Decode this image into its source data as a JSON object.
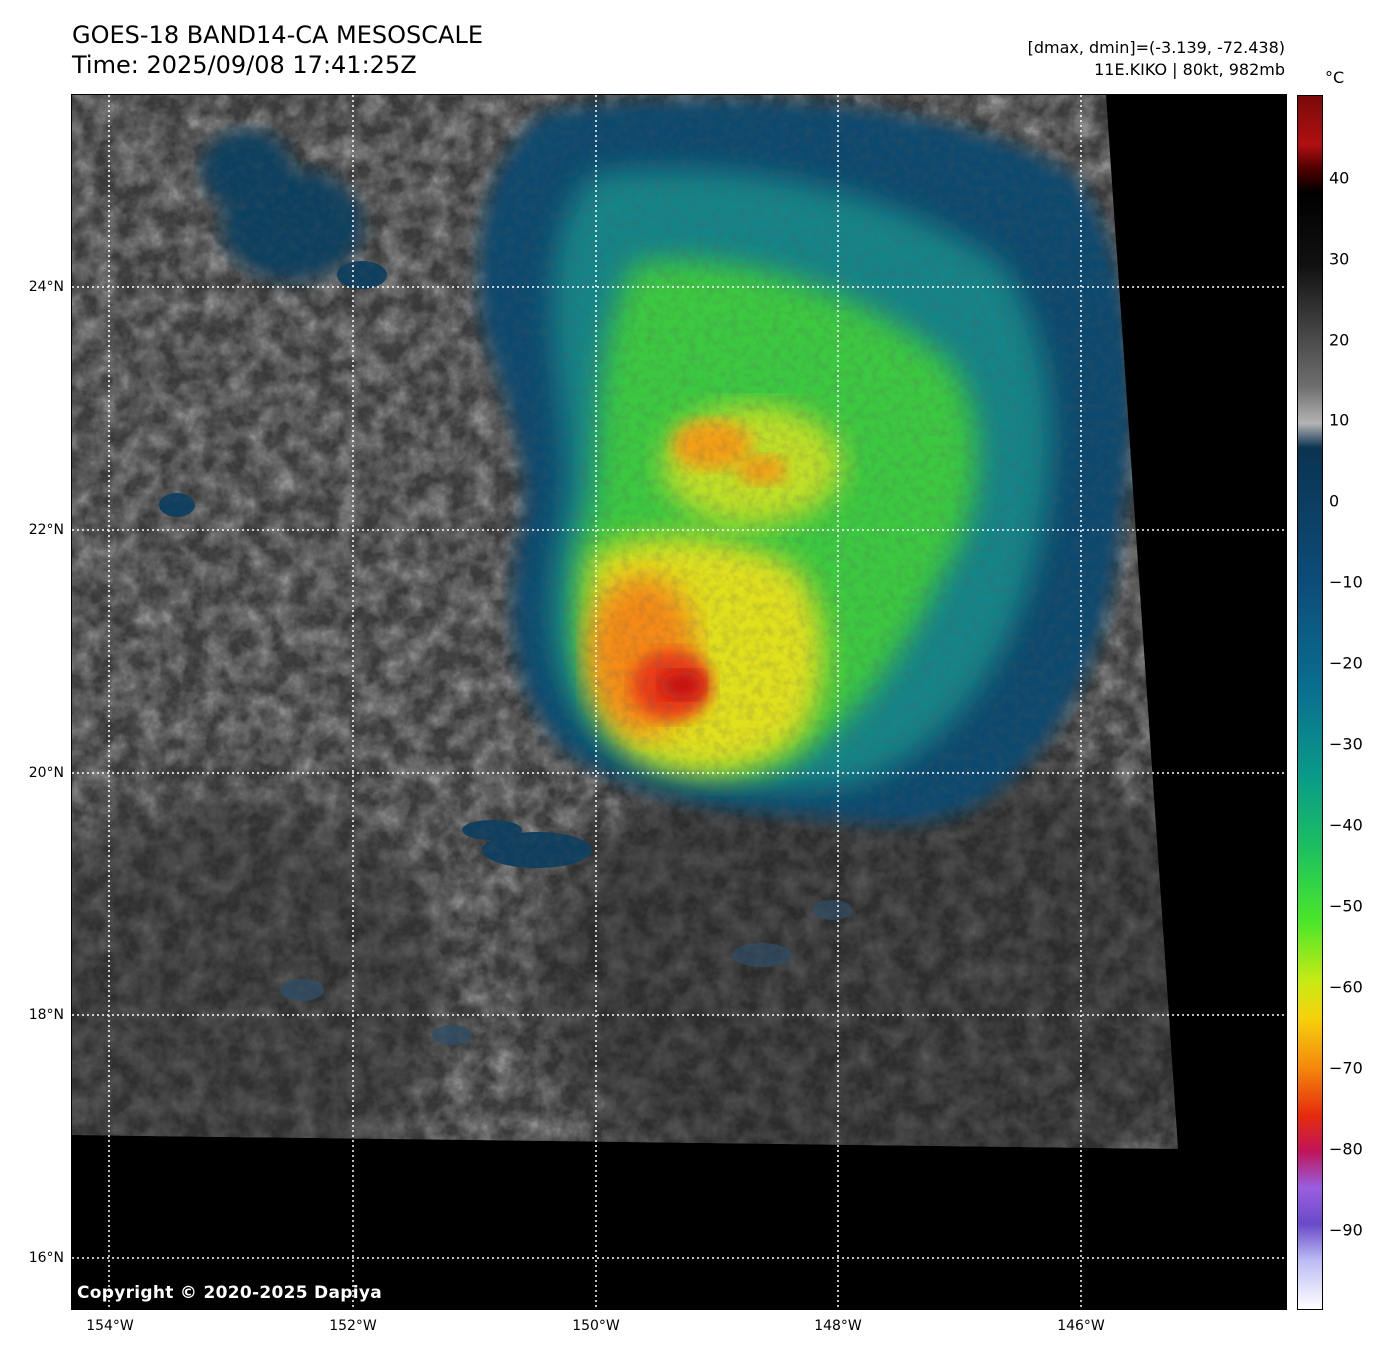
{
  "title": "GOES-18 BAND14-CA MESOSCALE",
  "time": "Time: 2025/09/08 17:41:25Z",
  "dminmax": "[dmax, dmin]=(-3.139, -72.438)",
  "storm": "11E.KIKO | 80kt, 982mb",
  "copyright": "Copyright © 2020-2025 Dapiya",
  "map": {
    "lat_range": [
      15.5,
      25.5
    ],
    "lon_range": [
      -154.3,
      -144.3
    ],
    "lat_labels": [
      {
        "lat": 24,
        "label": "24°N"
      },
      {
        "lat": 22,
        "label": "22°N"
      },
      {
        "lat": 20,
        "label": "20°N"
      },
      {
        "lat": 18,
        "label": "18°N"
      },
      {
        "lat": 16,
        "label": "16°N"
      }
    ],
    "lon_labels": [
      {
        "lon": -154,
        "label": "154°W"
      },
      {
        "lon": -152,
        "label": "152°W"
      },
      {
        "lon": -150,
        "label": "150°W"
      },
      {
        "lon": -148,
        "label": "148°W"
      },
      {
        "lon": -146,
        "label": "146°W"
      }
    ]
  },
  "colorbar": {
    "unit": "°C",
    "range": [
      -100,
      50
    ],
    "ticks": [
      {
        "value": 40,
        "label": "40"
      },
      {
        "value": 30,
        "label": "30"
      },
      {
        "value": 20,
        "label": "20"
      },
      {
        "value": 10,
        "label": "10"
      },
      {
        "value": 0,
        "label": "0"
      },
      {
        "value": -10,
        "label": "−10"
      },
      {
        "value": -20,
        "label": "−20"
      },
      {
        "value": -30,
        "label": "−30"
      },
      {
        "value": -40,
        "label": "−40"
      },
      {
        "value": -50,
        "label": "−50"
      },
      {
        "value": -60,
        "label": "−60"
      },
      {
        "value": -70,
        "label": "−70"
      },
      {
        "value": -80,
        "label": "−80"
      },
      {
        "value": -90,
        "label": "−90"
      }
    ]
  }
}
